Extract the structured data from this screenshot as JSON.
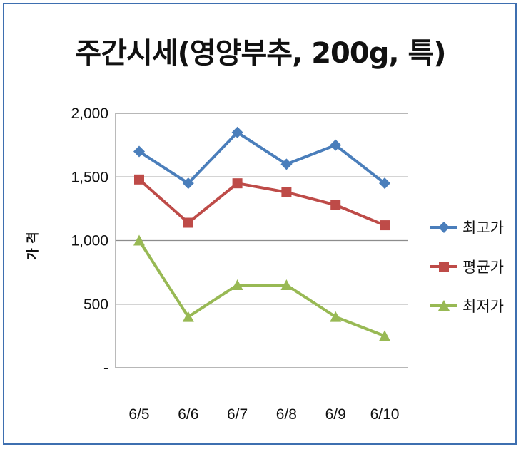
{
  "chart_data": {
    "type": "line",
    "title": "주간시세(영양부추, 200g, 특)",
    "ylabel": "가 격",
    "xlabel": "",
    "categories": [
      "6/5",
      "6/6",
      "6/7",
      "6/8",
      "6/9",
      "6/10"
    ],
    "ylim": [
      0,
      2000
    ],
    "yticks": [
      0,
      500,
      1000,
      1500,
      2000
    ],
    "ytick_labels": [
      "-",
      "500",
      "1,000",
      "1,500",
      "2,000"
    ],
    "grid": true,
    "legend_position": "right",
    "series": [
      {
        "name": "최고가",
        "values": [
          1700,
          1450,
          1850,
          1600,
          1750,
          1450
        ],
        "color": "#4a7ebb",
        "marker": "diamond"
      },
      {
        "name": "평균가",
        "values": [
          1480,
          1140,
          1450,
          1380,
          1280,
          1120
        ],
        "color": "#be4b48",
        "marker": "square"
      },
      {
        "name": "최저가",
        "values": [
          1000,
          400,
          650,
          650,
          400,
          250
        ],
        "color": "#98b954",
        "marker": "triangle"
      }
    ]
  }
}
